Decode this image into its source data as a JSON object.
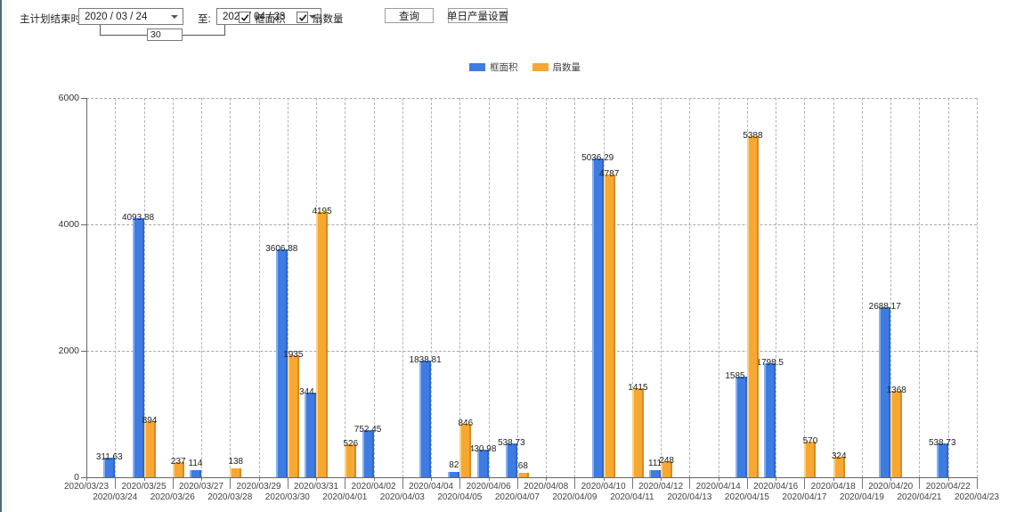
{
  "toolbar": {
    "end_time_label": "主计划结束时间:",
    "date_from": "2020 / 03 / 24",
    "to_label": "至:",
    "date_to": "2020 / 04 / 23",
    "days_value": "30",
    "checkboxes": [
      {
        "label": "框面积",
        "checked": true
      },
      {
        "label": "扇数量",
        "checked": true
      }
    ],
    "query_button": "查询",
    "daily_output_button": "单日产量设置"
  },
  "legend": {
    "items": [
      {
        "label": "框面积",
        "color": "#3e7ce2"
      },
      {
        "label": "扇数量",
        "color": "#f6a833"
      }
    ]
  },
  "chart_data": {
    "type": "bar",
    "title": "",
    "xlabel": "",
    "ylabel": "",
    "ylim": [
      0,
      6000
    ],
    "yticks": [
      0,
      2000,
      4000,
      6000
    ],
    "grid": true,
    "legend_position": "top-center",
    "categories": [
      "2020/03/23",
      "2020/03/24",
      "2020/03/25",
      "2020/03/26",
      "2020/03/27",
      "2020/03/28",
      "2020/03/29",
      "2020/03/30",
      "2020/03/31",
      "2020/04/01",
      "2020/04/02",
      "2020/04/03",
      "2020/04/04",
      "2020/04/05",
      "2020/04/06",
      "2020/04/07",
      "2020/04/08",
      "2020/04/09",
      "2020/04/10",
      "2020/04/11",
      "2020/04/12",
      "2020/04/13",
      "2020/04/14",
      "2020/04/15",
      "2020/04/16",
      "2020/04/17",
      "2020/04/18",
      "2020/04/19",
      "2020/04/20",
      "2020/04/21",
      "2020/04/22",
      "2020/04/23"
    ],
    "series": [
      {
        "name": "框面积",
        "color": "#3e7ce2",
        "values": [
          null,
          311.63,
          4093.88,
          null,
          114,
          null,
          null,
          3606.88,
          1344.95,
          null,
          752.45,
          null,
          1838.81,
          82,
          430.98,
          538.73,
          null,
          null,
          5036.29,
          null,
          111,
          null,
          null,
          1585.96,
          1798.5,
          null,
          null,
          null,
          2688.17,
          null,
          538.73,
          null
        ]
      },
      {
        "name": "扇数量",
        "color": "#f6a833",
        "values": [
          null,
          null,
          894,
          237,
          null,
          138,
          null,
          1935,
          4195,
          526,
          null,
          null,
          null,
          846,
          null,
          68,
          null,
          null,
          4787,
          1415,
          248,
          null,
          null,
          5388,
          null,
          570,
          324,
          null,
          1368,
          null,
          null,
          null
        ]
      }
    ]
  }
}
